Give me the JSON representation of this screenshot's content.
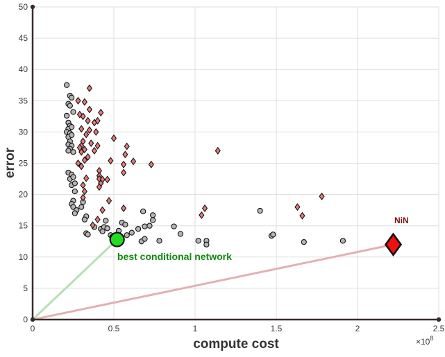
{
  "chart_data": {
    "type": "scatter",
    "xlabel": "compute cost",
    "ylabel": "error",
    "x_multiplier": {
      "base": "×10",
      "exponent": "8"
    },
    "xlim": [
      0,
      2.5
    ],
    "ylim": [
      0,
      50
    ],
    "xticks": [
      0,
      0.5,
      1,
      1.5,
      2,
      2.5
    ],
    "xtick_labels": [
      "0",
      "0.5",
      "1",
      "1.5",
      "2",
      "2.5"
    ],
    "yticks": [
      0,
      5,
      10,
      15,
      20,
      25,
      30,
      35,
      40,
      45,
      50
    ],
    "ytick_labels": [
      "0",
      "5",
      "10",
      "15",
      "20",
      "25",
      "30",
      "35",
      "40",
      "45",
      "50"
    ],
    "grid": true,
    "colors": {
      "gray_fill": "#b5b5b5",
      "red_fill": "#e8797a",
      "green_fill": "#22dd22",
      "nin_fill": "#ee1111",
      "green_line": "#b6e0b6",
      "red_line": "#e2b1b4",
      "axis": "#3a2a2a",
      "green_text": "#138a13",
      "nin_text": "#7a1010"
    },
    "series": [
      {
        "name": "gray",
        "marker": "circle",
        "points": [
          [
            0.21,
            37.5
          ],
          [
            0.23,
            35.8
          ],
          [
            0.24,
            35.5
          ],
          [
            0.22,
            34.5
          ],
          [
            0.23,
            34.2
          ],
          [
            0.21,
            32.6
          ],
          [
            0.25,
            33.2
          ],
          [
            0.22,
            31.5
          ],
          [
            0.23,
            31.0
          ],
          [
            0.22,
            30.5
          ],
          [
            0.24,
            30.8
          ],
          [
            0.21,
            30.0
          ],
          [
            0.23,
            29.8
          ],
          [
            0.22,
            29.2
          ],
          [
            0.24,
            29.5
          ],
          [
            0.23,
            28.5
          ],
          [
            0.22,
            28.0
          ],
          [
            0.24,
            27.8
          ],
          [
            0.23,
            27.3
          ],
          [
            0.22,
            27.0
          ],
          [
            0.25,
            26.8
          ],
          [
            0.22,
            23.5
          ],
          [
            0.24,
            23.2
          ],
          [
            0.23,
            22.5
          ],
          [
            0.25,
            22.8
          ],
          [
            0.24,
            21.5
          ],
          [
            0.26,
            21.8
          ],
          [
            0.26,
            20.5
          ],
          [
            0.25,
            19.0
          ],
          [
            0.24,
            18.5
          ],
          [
            0.25,
            18.0
          ],
          [
            0.27,
            17.5
          ],
          [
            0.26,
            17.0
          ],
          [
            0.31,
            18.8
          ],
          [
            0.3,
            18.0
          ],
          [
            0.33,
            16.5
          ],
          [
            0.32,
            16.0
          ],
          [
            0.33,
            13.8
          ],
          [
            0.34,
            13.6
          ],
          [
            0.38,
            14.8
          ],
          [
            0.42,
            14.5
          ],
          [
            0.44,
            14.8
          ],
          [
            0.45,
            15.8
          ],
          [
            0.46,
            14.6
          ],
          [
            0.43,
            14.1
          ],
          [
            0.48,
            13.5
          ],
          [
            0.49,
            13.2
          ],
          [
            0.51,
            13.0
          ],
          [
            0.53,
            14.2
          ],
          [
            0.55,
            15.5
          ],
          [
            0.57,
            15.2
          ],
          [
            0.58,
            13.5
          ],
          [
            0.61,
            13.9
          ],
          [
            0.65,
            14.5
          ],
          [
            0.69,
            14.9
          ],
          [
            0.68,
            17.3
          ],
          [
            0.74,
            16.7
          ],
          [
            0.74,
            15.9
          ],
          [
            0.72,
            15.0
          ],
          [
            0.67,
            12.5
          ],
          [
            0.69,
            12.9
          ],
          [
            0.78,
            12.6
          ],
          [
            0.87,
            14.9
          ],
          [
            0.91,
            13.7
          ],
          [
            1.02,
            12.6
          ],
          [
            1.07,
            12.6
          ],
          [
            1.07,
            12.0
          ],
          [
            1.4,
            17.4
          ],
          [
            1.47,
            13.4
          ],
          [
            1.48,
            13.6
          ],
          [
            1.67,
            12.4
          ],
          [
            1.91,
            12.6
          ]
        ]
      },
      {
        "name": "red",
        "marker": "diamond",
        "points": [
          [
            0.35,
            37.0
          ],
          [
            0.28,
            35.0
          ],
          [
            0.32,
            34.8
          ],
          [
            0.35,
            33.6
          ],
          [
            0.42,
            33.1
          ],
          [
            0.29,
            32.8
          ],
          [
            0.31,
            32.5
          ],
          [
            0.34,
            31.8
          ],
          [
            0.38,
            31.5
          ],
          [
            0.4,
            31.8
          ],
          [
            0.3,
            30.5
          ],
          [
            0.35,
            30.3
          ],
          [
            0.39,
            30.0
          ],
          [
            0.33,
            29.6
          ],
          [
            0.31,
            28.5
          ],
          [
            0.36,
            28.2
          ],
          [
            0.3,
            27.8
          ],
          [
            0.29,
            27.5
          ],
          [
            0.32,
            27.2
          ],
          [
            0.38,
            27.0
          ],
          [
            0.4,
            27.8
          ],
          [
            0.5,
            29.0
          ],
          [
            0.58,
            27.7
          ],
          [
            0.3,
            26.8
          ],
          [
            0.34,
            26.0
          ],
          [
            0.32,
            25.5
          ],
          [
            0.57,
            26.4
          ],
          [
            0.62,
            25.3
          ],
          [
            0.48,
            25.4
          ],
          [
            0.56,
            24.8
          ],
          [
            0.28,
            25.0
          ],
          [
            0.3,
            24.5
          ],
          [
            0.73,
            24.8
          ],
          [
            0.41,
            23.8
          ],
          [
            0.41,
            23.0
          ],
          [
            0.56,
            23.5
          ],
          [
            0.33,
            22.6
          ],
          [
            0.41,
            22.5
          ],
          [
            0.43,
            22.4
          ],
          [
            0.46,
            22.4
          ],
          [
            0.31,
            21.5
          ],
          [
            0.42,
            21.8
          ],
          [
            0.41,
            21.2
          ],
          [
            0.32,
            20.5
          ],
          [
            0.31,
            19.5
          ],
          [
            0.47,
            19.0
          ],
          [
            0.43,
            17.5
          ],
          [
            0.56,
            17.8
          ],
          [
            1.14,
            27.0
          ],
          [
            1.06,
            17.8
          ],
          [
            1.04,
            16.7
          ],
          [
            1.63,
            18.0
          ],
          [
            1.66,
            16.6
          ],
          [
            1.78,
            19.7
          ],
          [
            0.4,
            16.0
          ],
          [
            0.37,
            15.1
          ]
        ]
      },
      {
        "name": "best conditional network",
        "marker": "circle-large",
        "points": [
          [
            0.52,
            12.8
          ]
        ]
      },
      {
        "name": "NiN",
        "marker": "diamond-large",
        "points": [
          [
            2.22,
            12.0
          ]
        ]
      }
    ],
    "lines": [
      {
        "name": "origin-to-best",
        "from": [
          0,
          0
        ],
        "to": [
          0.52,
          12.8
        ],
        "color": "green_line"
      },
      {
        "name": "origin-to-nin",
        "from": [
          0,
          0
        ],
        "to": [
          2.22,
          12.0
        ],
        "color": "red_line"
      }
    ],
    "annotations": {
      "best": "best conditional network",
      "nin": "NiN"
    }
  }
}
